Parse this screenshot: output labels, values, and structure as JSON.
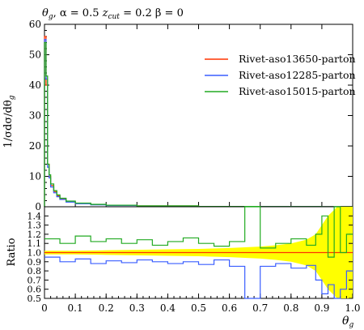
{
  "chart_data": [
    {
      "type": "line",
      "title": "θg, α = 0.5 zcut = 0.2 β = 0",
      "title_parts": {
        "sym": "θ",
        "sym_sub": "g",
        "rest": ", α = 0.5 ",
        "z": "z",
        "z_sub": "cut",
        "rest2": " = 0.2 β = 0"
      },
      "xlabel": "θ",
      "xlabel_sub": "g",
      "ylabel": "1/σdσ/dθ",
      "ylabel_sub": "g",
      "xlim": [
        0,
        1
      ],
      "ylim": [
        0,
        60
      ],
      "ticks_y": [
        "0",
        "10",
        "20",
        "30",
        "40",
        "50",
        "60"
      ],
      "legend_position": "top-right",
      "series": [
        {
          "name": "Rivet-aso13650-parton",
          "color": "#ff3300",
          "x": [
            0.0,
            0.005,
            0.01,
            0.015,
            0.02,
            0.03,
            0.04,
            0.05,
            0.07,
            0.1,
            0.15,
            0.2,
            0.3,
            0.5,
            0.7,
            0.9,
            1.0
          ],
          "y": [
            56,
            40,
            14,
            10,
            7,
            5,
            3.6,
            2.6,
            1.7,
            1.1,
            0.7,
            0.45,
            0.25,
            0.1,
            0.05,
            0.03,
            0.02
          ]
        },
        {
          "name": "Rivet-aso12285-parton",
          "color": "#3a5eff",
          "x": [
            0.0,
            0.005,
            0.01,
            0.015,
            0.02,
            0.03,
            0.04,
            0.05,
            0.07,
            0.1,
            0.15,
            0.2,
            0.3,
            0.5,
            0.7,
            0.9,
            1.0
          ],
          "y": [
            55,
            42,
            13,
            9.5,
            6.5,
            4.6,
            3.3,
            2.4,
            1.55,
            1.0,
            0.65,
            0.42,
            0.23,
            0.09,
            0.045,
            0.028,
            0.018
          ]
        },
        {
          "name": "Rivet-aso15015-parton",
          "color": "#22aa22",
          "x": [
            0.0,
            0.005,
            0.01,
            0.015,
            0.02,
            0.03,
            0.04,
            0.05,
            0.07,
            0.1,
            0.15,
            0.2,
            0.3,
            0.5,
            0.7,
            0.9,
            1.0
          ],
          "y": [
            54,
            43,
            14,
            10.5,
            7.5,
            5.3,
            3.9,
            2.8,
            1.85,
            1.2,
            0.78,
            0.5,
            0.28,
            0.11,
            0.055,
            0.033,
            0.022
          ]
        }
      ]
    },
    {
      "type": "line",
      "ylabel": "Ratio",
      "xlabel": "θ",
      "xlabel_sub": "g",
      "xlim": [
        0,
        1
      ],
      "ylim": [
        0.5,
        1.5
      ],
      "ticks_y": [
        "0.5",
        "0.6",
        "0.7",
        "0.8",
        "0.9",
        "1.0",
        "1.1",
        "1.2",
        "1.3",
        "1.4"
      ],
      "ticks_x": [
        "0",
        "0.1",
        "0.2",
        "0.3",
        "0.4",
        "0.5",
        "0.6",
        "0.7",
        "0.8",
        "0.9",
        "1.0"
      ],
      "band": {
        "color": "#ffff00",
        "x": [
          0.0,
          0.1,
          0.2,
          0.3,
          0.4,
          0.5,
          0.6,
          0.7,
          0.75,
          0.8,
          0.85,
          0.88,
          0.9,
          0.92,
          0.95,
          0.98,
          1.0
        ],
        "half_width": [
          0.02,
          0.02,
          0.025,
          0.03,
          0.035,
          0.04,
          0.05,
          0.065,
          0.08,
          0.1,
          0.14,
          0.2,
          0.3,
          0.4,
          0.5,
          0.5,
          0.5
        ]
      },
      "series": [
        {
          "name": "Rivet-aso12285-parton",
          "color": "#3a5eff",
          "x": [
            0.0,
            0.05,
            0.1,
            0.15,
            0.2,
            0.25,
            0.3,
            0.35,
            0.4,
            0.45,
            0.5,
            0.55,
            0.6,
            0.65,
            0.7,
            0.75,
            0.8,
            0.85,
            0.88,
            0.9,
            0.92,
            0.94,
            0.96,
            0.98
          ],
          "y": [
            0.95,
            0.9,
            0.93,
            0.88,
            0.91,
            0.89,
            0.92,
            0.9,
            0.88,
            0.9,
            0.87,
            0.92,
            0.85,
            0.5,
            0.85,
            0.88,
            0.83,
            0.86,
            0.7,
            0.55,
            0.65,
            0.5,
            0.6,
            0.8
          ]
        },
        {
          "name": "Rivet-aso15015-parton",
          "color": "#22aa22",
          "x": [
            0.0,
            0.05,
            0.1,
            0.15,
            0.2,
            0.25,
            0.3,
            0.35,
            0.4,
            0.45,
            0.5,
            0.55,
            0.6,
            0.65,
            0.7,
            0.75,
            0.8,
            0.85,
            0.88,
            0.9,
            0.92,
            0.94,
            0.96,
            0.98
          ],
          "y": [
            1.15,
            1.1,
            1.18,
            1.12,
            1.15,
            1.1,
            1.14,
            1.08,
            1.12,
            1.16,
            1.1,
            1.07,
            1.12,
            1.5,
            1.05,
            1.1,
            1.15,
            1.08,
            1.2,
            1.4,
            0.95,
            1.5,
            1.0,
            1.2
          ]
        }
      ]
    }
  ]
}
